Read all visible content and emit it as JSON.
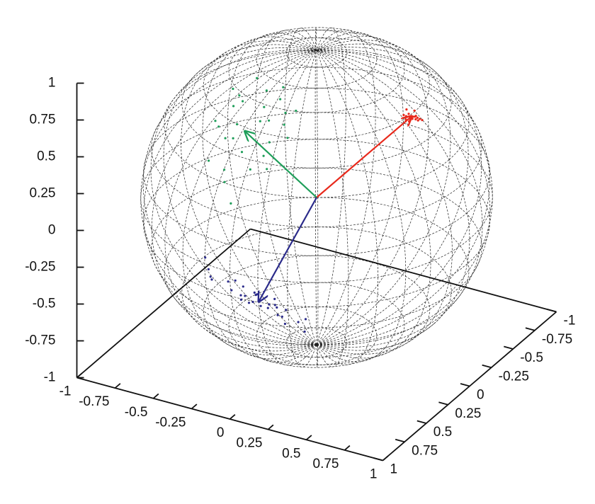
{
  "chart_data": {
    "type": "scatter3d",
    "xlim": [
      -1,
      1
    ],
    "xticks": [
      -1,
      -0.75,
      -0.5,
      -0.25,
      0,
      0.25,
      0.5,
      0.75,
      1
    ],
    "ylim": [
      -1,
      1
    ],
    "yticks": [
      -1,
      -0.75,
      -0.5,
      -0.25,
      0,
      0.25,
      0.5,
      0.75,
      1
    ],
    "zlim": [
      -1,
      1
    ],
    "zticks": [
      -1,
      -0.75,
      -0.5,
      -0.25,
      0,
      0.25,
      0.5,
      0.75,
      1
    ],
    "series": [
      {
        "color": "#e8291c",
        "x": [
          0.65,
          0.66,
          0.63,
          0.67,
          0.64,
          0.68,
          0.62,
          0.66,
          0.65,
          0.69,
          0.63,
          0.64,
          0.67,
          0.66,
          0.61,
          0.65,
          0.68,
          0.64,
          0.66,
          0.63
        ],
        "y": [
          0.05,
          0.02,
          0.08,
          0.04,
          0.06,
          0.01,
          0.09,
          0.03,
          0.07,
          0.0,
          0.05,
          0.1,
          0.02,
          0.06,
          0.04,
          0.08,
          0.03,
          0.0,
          0.05,
          0.07
        ],
        "z": [
          0.76,
          0.75,
          0.77,
          0.74,
          0.76,
          0.73,
          0.78,
          0.75,
          0.75,
          0.72,
          0.77,
          0.76,
          0.74,
          0.75,
          0.79,
          0.74,
          0.73,
          0.77,
          0.76,
          0.76
        ],
        "arrow": [
          0.65,
          0.05,
          0.76
        ]
      },
      {
        "color": "#1f9e5a",
        "x": [
          -0.1,
          -0.3,
          0.05,
          -0.2,
          0.1,
          -0.15,
          -0.25,
          0,
          0.15,
          -0.05,
          -0.35,
          -0.1,
          0.08,
          -0.2,
          -0.02,
          -0.28,
          0.12,
          -0.12,
          -0.18,
          0.02,
          -0.06,
          -0.22,
          0.06,
          -0.32,
          -0.08,
          0.1,
          -0.16,
          -0.04,
          -0.26,
          0
        ],
        "y": [
          0.65,
          0.6,
          0.7,
          0.5,
          0.75,
          0.8,
          0.45,
          0.55,
          0.6,
          0.9,
          0.55,
          0.4,
          0.5,
          0.7,
          0.35,
          0.75,
          0.45,
          0.85,
          0.6,
          0.8,
          0.5,
          0.3,
          0.65,
          0.4,
          0.72,
          0.55,
          0.68,
          0.58,
          0.5,
          0.42
        ],
        "z": [
          0.75,
          0.7,
          0.65,
          0.85,
          0.6,
          0.55,
          0.85,
          0.8,
          0.75,
          0.4,
          0.7,
          0.9,
          0.85,
          0.7,
          0.92,
          0.55,
          0.85,
          0.5,
          0.75,
          0.6,
          0.85,
          0.9,
          0.72,
          0.85,
          0.65,
          0.8,
          0.7,
          0.8,
          0.8,
          0.88
        ],
        "arrow": [
          -0.1,
          0.65,
          0.75
        ]
      },
      {
        "color": "#2a2a8a",
        "x": [
          -0.35,
          -0.5,
          -0.2,
          -0.6,
          -0.1,
          -0.45,
          -0.3,
          -0.25,
          -0.4,
          -0.55,
          -0.15,
          -0.38,
          -0.32,
          -0.65,
          -0.05,
          -0.42,
          -0.28,
          -0.48,
          -0.22,
          -0.36,
          -0.58,
          -0.12,
          -0.4,
          -0.3,
          -0.52,
          -0.18,
          -0.34,
          -0.44,
          -0.26,
          -0.7
        ],
        "y": [
          0.05,
          0.1,
          0,
          0.15,
          -0.05,
          0.08,
          0.02,
          0.12,
          -0.02,
          0.05,
          0.1,
          0.2,
          -0.08,
          0.1,
          0.05,
          -0.04,
          0.15,
          0,
          0.06,
          0.1,
          0.2,
          0,
          0.12,
          -0.05,
          0.02,
          0.08,
          0.18,
          -0.06,
          0,
          0.05
        ],
        "z": [
          -0.78,
          -0.72,
          -0.82,
          -0.65,
          -0.88,
          -0.75,
          -0.8,
          -0.76,
          -0.78,
          -0.7,
          -0.85,
          -0.7,
          -0.82,
          -0.62,
          -0.9,
          -0.8,
          -0.74,
          -0.74,
          -0.83,
          -0.76,
          -0.6,
          -0.88,
          -0.72,
          -0.84,
          -0.7,
          -0.82,
          -0.72,
          -0.8,
          -0.82,
          -0.58
        ],
        "arrow": [
          -0.35,
          0.05,
          -0.78
        ]
      }
    ]
  }
}
